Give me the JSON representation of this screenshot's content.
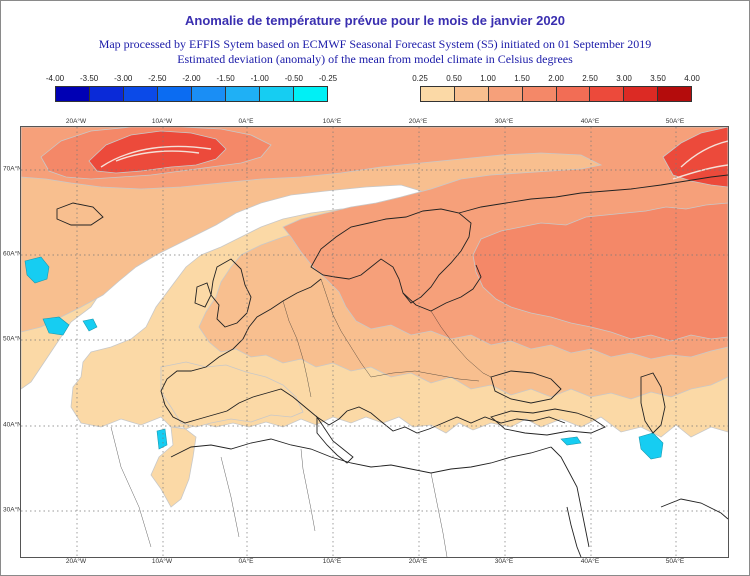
{
  "title": "Anomalie de température prévue pour le mois de janvier 2020",
  "subtitle_line1": "Map processed by EFFIS Sytem based on ECMWF Seasonal Forecast System (S5) initiated on 01 September 2019",
  "subtitle_line2": "Estimated deviation (anomaly) of the mean from model climate in Celsius degrees",
  "legend_negative": {
    "labels": [
      "-4.00",
      "-3.50",
      "-3.00",
      "-2.50",
      "-2.00",
      "-1.50",
      "-1.00",
      "-0.50",
      "-0.25"
    ],
    "colors": [
      "#0000b4",
      "#0a2ad8",
      "#0b4ae8",
      "#0b6cf2",
      "#1a8ef5",
      "#1fb0f5",
      "#16cdf2",
      "#00f0f5"
    ]
  },
  "legend_positive": {
    "labels": [
      "0.25",
      "0.50",
      "1.00",
      "1.50",
      "2.00",
      "2.50",
      "3.00",
      "3.50",
      "4.00"
    ],
    "colors": [
      "#fbd9a6",
      "#f8bf8f",
      "#f6a07a",
      "#f48868",
      "#f26d55",
      "#ec4a3b",
      "#dc2a24",
      "#b40c0c"
    ]
  },
  "lon_ticks": [
    "20A°W",
    "10A°W",
    "0A°E",
    "10A°E",
    "20A°E",
    "30A°E",
    "40A°E",
    "50A°E"
  ],
  "lat_ticks": [
    "70A°N",
    "60A°N",
    "50A°N",
    "40A°N",
    "30A°N"
  ],
  "map_colors": {
    "ocean": "#ffffff",
    "light_anomaly": "#fbd9a6",
    "mid_anomaly": "#f8bf8f",
    "high_anomaly": "#f6a07a",
    "very_high_anomaly": "#f48868",
    "peak_anomaly": "#ec4a3b",
    "negative_anomaly": "#16cdf2",
    "coastline": "#222222",
    "contour": "#c8c8c8",
    "gridline": "#777777"
  }
}
